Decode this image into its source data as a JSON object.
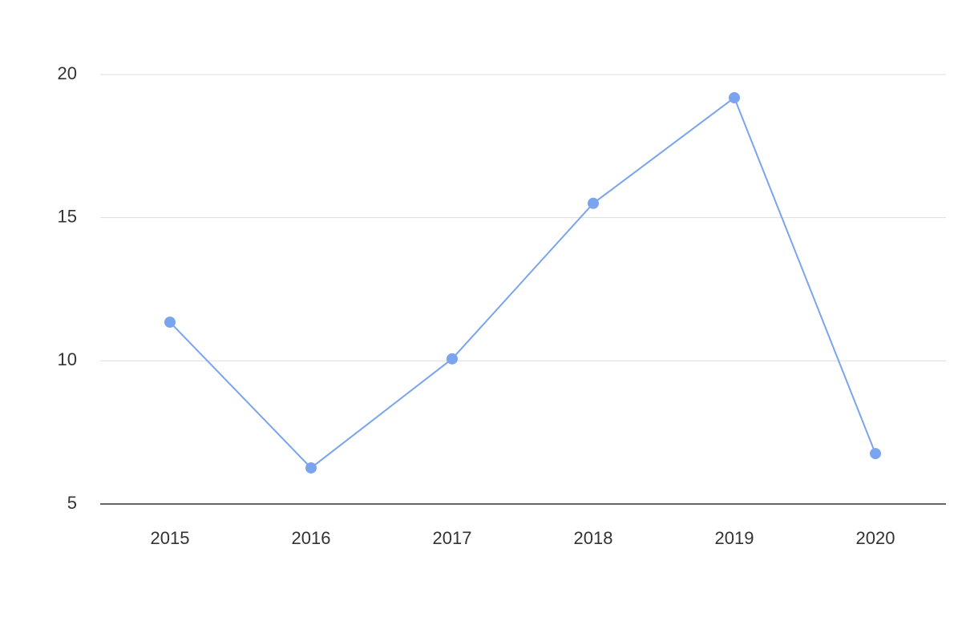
{
  "chart_data": {
    "type": "line",
    "categories": [
      "2015",
      "2016",
      "2017",
      "2018",
      "2019",
      "2020"
    ],
    "series": [
      {
        "color": "#7ba4ef",
        "values": [
          11.35,
          6.26,
          10.07,
          15.5,
          19.19,
          6.76
        ]
      }
    ],
    "ylim": [
      5,
      20
    ],
    "yticks": [
      5,
      10,
      15,
      20
    ],
    "grid": true
  }
}
